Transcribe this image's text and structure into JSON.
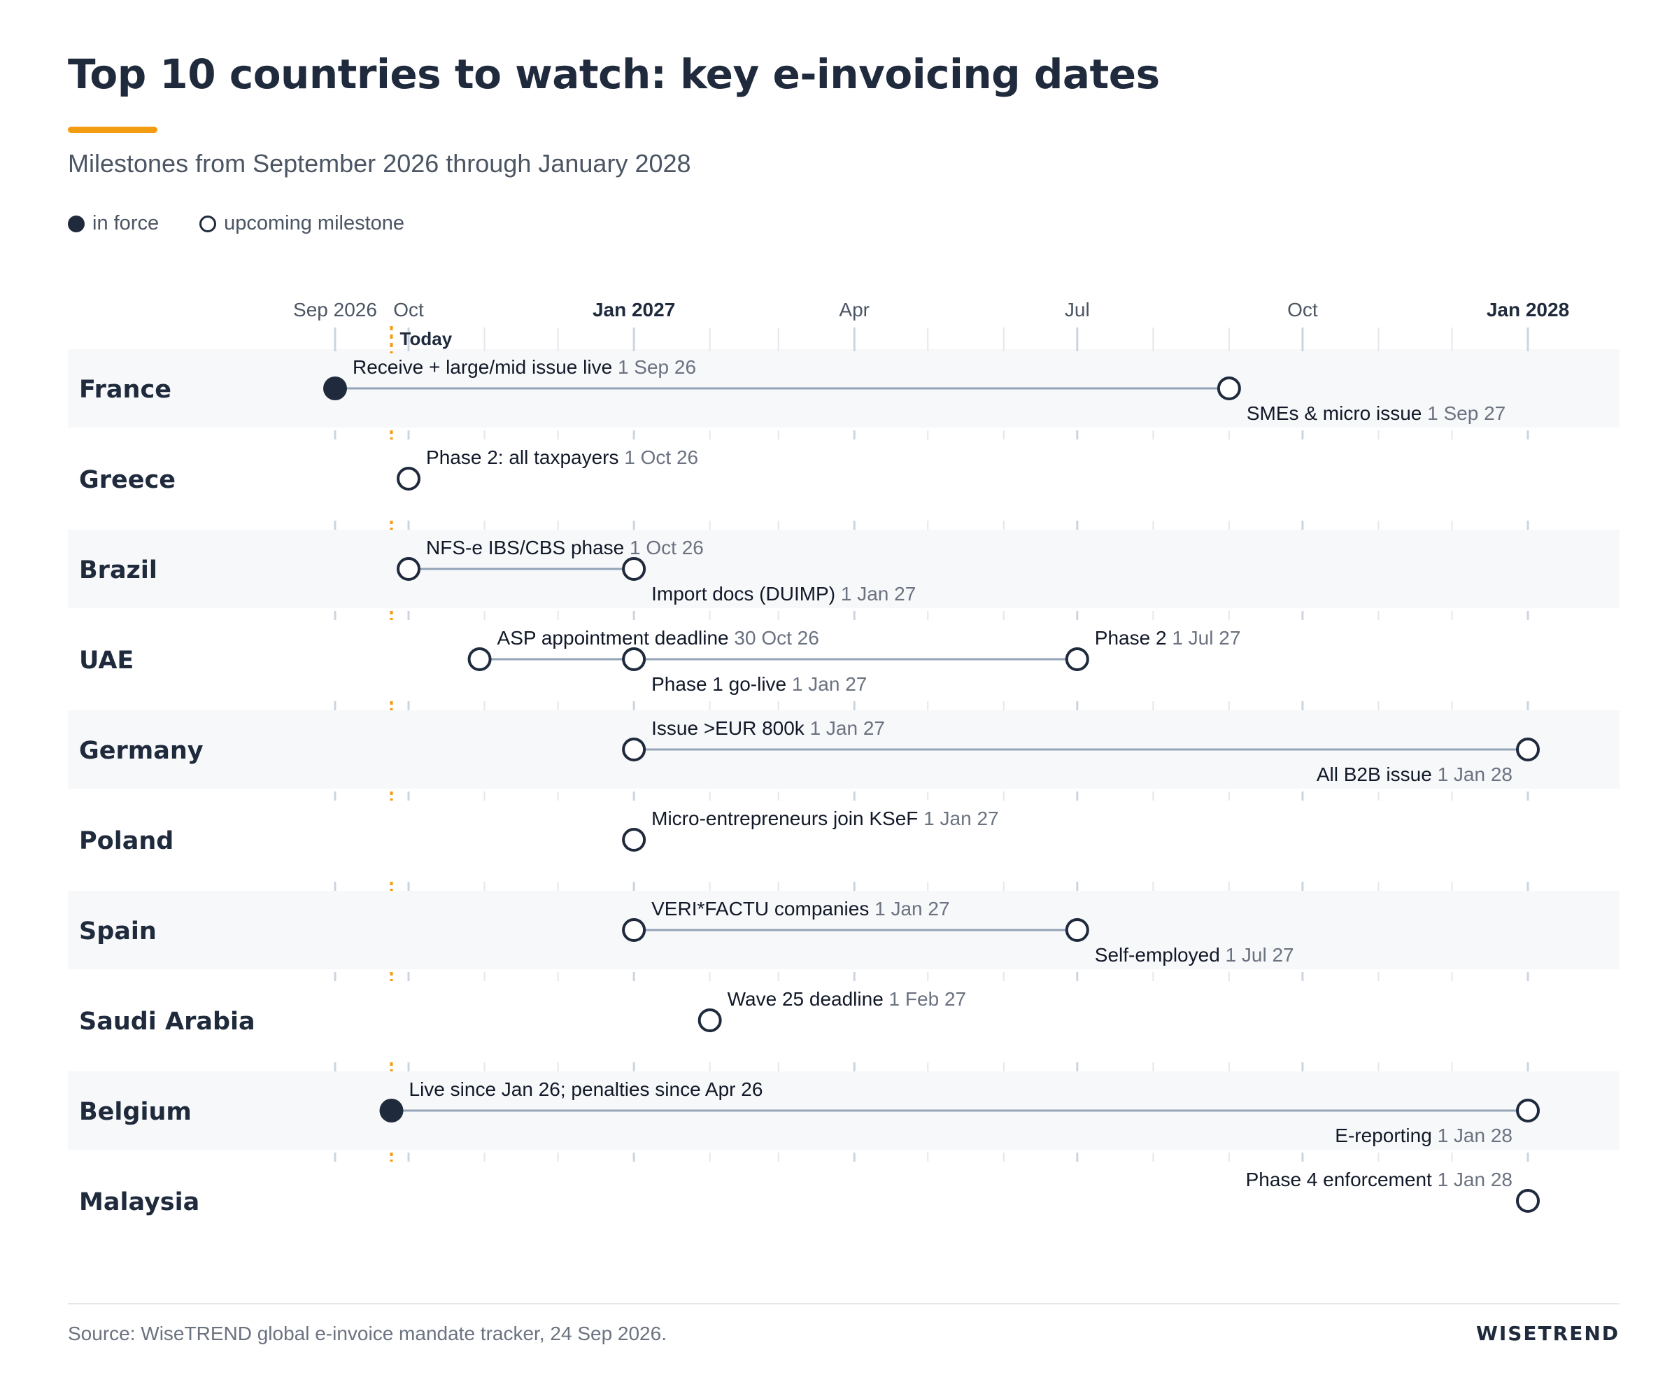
{
  "title": "Top 10 countries to watch: key e-invoicing dates",
  "subtitle": "Milestones from September 2026 through January 2028",
  "legend": {
    "in_force": "in force",
    "upcoming": "upcoming milestone"
  },
  "footer": {
    "source": "Source: WiseTREND global e-invoice mandate tracker, 24 Sep 2026.",
    "brand": "WISETREND"
  },
  "colors": {
    "ink": "#1f2a3c",
    "accent": "#f39c12",
    "connector": "#94a3b8",
    "muted": "#6b7280",
    "band": "#f7f8fa",
    "grid": "#e5e7eb",
    "axis_tick": "#cbd5e1"
  },
  "chart_data": {
    "type": "timeline",
    "x_range": [
      "2026-09-01",
      "2028-01-01"
    ],
    "today": {
      "date": "2026-09-24",
      "label": "Today"
    },
    "ticks": [
      {
        "date": "2026-09-01",
        "label": "Sep 2026",
        "bold": false
      },
      {
        "date": "2026-10-01",
        "label": "Oct",
        "bold": false
      },
      {
        "date": "2027-01-01",
        "label": "Jan 2027",
        "bold": true
      },
      {
        "date": "2027-04-01",
        "label": "Apr",
        "bold": false
      },
      {
        "date": "2027-07-01",
        "label": "Jul",
        "bold": false
      },
      {
        "date": "2027-10-01",
        "label": "Oct",
        "bold": false
      },
      {
        "date": "2028-01-01",
        "label": "Jan 2028",
        "bold": true
      }
    ],
    "rows": [
      {
        "country": "France",
        "milestones": [
          {
            "date": "2026-09-01",
            "label": "Receive + large/mid issue live",
            "date_label": "1 Sep 26",
            "status": "in force",
            "label_pos": "above-right"
          },
          {
            "date": "2027-09-01",
            "label": "SMEs & micro issue",
            "date_label": "1 Sep 27",
            "status": "upcoming",
            "label_pos": "below-right"
          }
        ]
      },
      {
        "country": "Greece",
        "milestones": [
          {
            "date": "2026-10-01",
            "label": "Phase 2: all taxpayers",
            "date_label": "1 Oct 26",
            "status": "upcoming",
            "label_pos": "above-right"
          }
        ]
      },
      {
        "country": "Brazil",
        "milestones": [
          {
            "date": "2026-10-01",
            "label": "NFS-e IBS/CBS phase",
            "date_label": "1 Oct 26",
            "status": "upcoming",
            "label_pos": "above-right"
          },
          {
            "date": "2027-01-01",
            "label": "Import docs (DUIMP)",
            "date_label": "1 Jan 27",
            "status": "upcoming",
            "label_pos": "below-right"
          }
        ]
      },
      {
        "country": "UAE",
        "milestones": [
          {
            "date": "2026-10-30",
            "label": "ASP appointment deadline",
            "date_label": "30 Oct 26",
            "status": "upcoming",
            "label_pos": "above-right"
          },
          {
            "date": "2027-01-01",
            "label": "Phase 1 go-live",
            "date_label": "1 Jan 27",
            "status": "upcoming",
            "label_pos": "below-right"
          },
          {
            "date": "2027-07-01",
            "label": "Phase 2",
            "date_label": "1 Jul 27",
            "status": "upcoming",
            "label_pos": "above-right"
          }
        ]
      },
      {
        "country": "Germany",
        "milestones": [
          {
            "date": "2027-01-01",
            "label": "Issue >EUR 800k",
            "date_label": "1 Jan 27",
            "status": "upcoming",
            "label_pos": "above-right"
          },
          {
            "date": "2028-01-01",
            "label": "All B2B issue",
            "date_label": "1 Jan 28",
            "status": "upcoming",
            "label_pos": "below-left"
          }
        ]
      },
      {
        "country": "Poland",
        "milestones": [
          {
            "date": "2027-01-01",
            "label": "Micro-entrepreneurs join KSeF",
            "date_label": "1 Jan 27",
            "status": "upcoming",
            "label_pos": "above-right"
          }
        ]
      },
      {
        "country": "Spain",
        "milestones": [
          {
            "date": "2027-01-01",
            "label": "VERI*FACTU companies",
            "date_label": "1 Jan 27",
            "status": "upcoming",
            "label_pos": "above-right"
          },
          {
            "date": "2027-07-01",
            "label": "Self-employed",
            "date_label": "1 Jul 27",
            "status": "upcoming",
            "label_pos": "below-right"
          }
        ]
      },
      {
        "country": "Saudi Arabia",
        "milestones": [
          {
            "date": "2027-02-01",
            "label": "Wave 25 deadline",
            "date_label": "1 Feb 27",
            "status": "upcoming",
            "label_pos": "above-right"
          }
        ]
      },
      {
        "country": "Belgium",
        "milestones": [
          {
            "date": "2026-09-24",
            "label": "Live since Jan 26; penalties since Apr 26",
            "date_label": "",
            "status": "in force",
            "label_pos": "above-right"
          },
          {
            "date": "2028-01-01",
            "label": "E-reporting",
            "date_label": "1 Jan 28",
            "status": "upcoming",
            "label_pos": "below-left"
          }
        ]
      },
      {
        "country": "Malaysia",
        "milestones": [
          {
            "date": "2028-01-01",
            "label": "Phase 4 enforcement",
            "date_label": "1 Jan 28",
            "status": "upcoming",
            "label_pos": "above-left"
          }
        ]
      }
    ]
  }
}
